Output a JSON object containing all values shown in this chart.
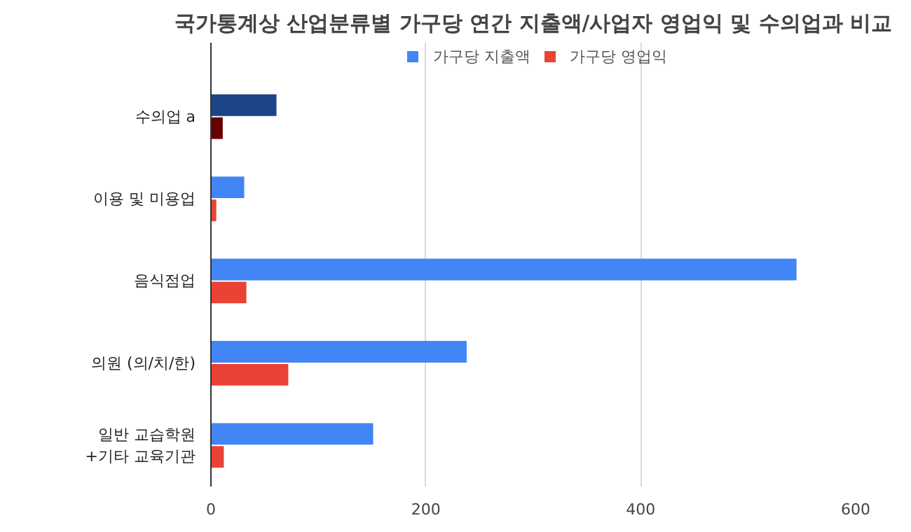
{
  "chart_data": {
    "type": "bar",
    "orientation": "horizontal",
    "title": "국가통계상 산업분류별 가구당 연간 지출액/사업자 영업익 및 수의업과 비교",
    "categories": [
      "수의업 a",
      "이용 및 미용업",
      "음식점업",
      "의원 (의/치/한)",
      "일반 교습학원\n+기타 교육기관"
    ],
    "series": [
      {
        "name": "가구당 지출액",
        "color": "#4285f4",
        "colors": [
          "#1c4587",
          "#4285f4",
          "#4285f4",
          "#4285f4",
          "#4285f4"
        ],
        "values": [
          61,
          31,
          545,
          238,
          151
        ]
      },
      {
        "name": "가구당 영업익",
        "color": "#ea4335",
        "colors": [
          "#660000",
          "#ea4335",
          "#ea4335",
          "#ea4335",
          "#ea4335"
        ],
        "values": [
          11,
          5,
          33,
          72,
          12
        ]
      }
    ],
    "xlim": [
      0,
      600
    ],
    "xticks": [
      0,
      200,
      400,
      600
    ],
    "grid": "x",
    "legend": "top"
  }
}
